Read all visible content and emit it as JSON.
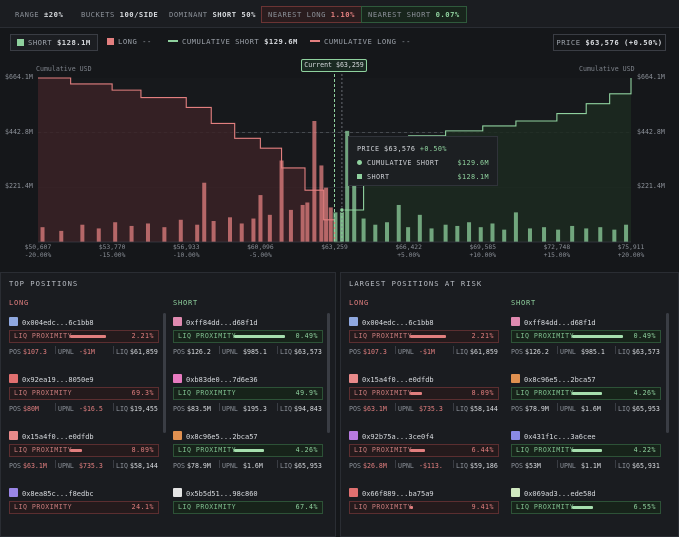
{
  "stats": {
    "range_label": "RANGE",
    "range_value": "±20%",
    "buckets_label": "BUCKETS",
    "buckets_value": "100/SIDE",
    "dominant_label": "DOMINANT",
    "dominant_value": "SHORT 50%",
    "nearest_long_label": "NEAREST LONG",
    "nearest_long_value": "1.10%",
    "nearest_short_label": "NEAREST SHORT",
    "nearest_short_value": "0.07%"
  },
  "legend": {
    "short_label": "SHORT",
    "short_value": "$128.1M",
    "long_label": "LONG",
    "long_value": "--",
    "cum_short_label": "CUMULATIVE SHORT",
    "cum_short_value": "$129.6M",
    "cum_long_label": "CUMULATIVE LONG",
    "cum_long_value": "--",
    "price_label": "PRICE",
    "price_value": "$63,576 (+0.50%)"
  },
  "chart": {
    "current_badge": "Current $63,259",
    "left_axis_title": "Cumulative USD",
    "right_axis_title": "Cumulative USD",
    "yticks": [
      "$664.1M",
      "$442.8M",
      "$221.4M"
    ],
    "xticks": [
      {
        "price": "$50,607",
        "pct": "-20.00%"
      },
      {
        "price": "$53,770",
        "pct": "-15.00%"
      },
      {
        "price": "$56,933",
        "pct": "-10.00%"
      },
      {
        "price": "$60,096",
        "pct": "-5.00%"
      },
      {
        "price": "$63,259",
        "pct": ""
      },
      {
        "price": "$66,422",
        "pct": "+5.00%"
      },
      {
        "price": "$69,585",
        "pct": "+10.00%"
      },
      {
        "price": "$72,748",
        "pct": "+15.00%"
      },
      {
        "price": "$75,911",
        "pct": "+20.00%"
      }
    ],
    "tooltip": {
      "price_label": "PRICE",
      "price_value": "$63,576",
      "price_change": "+0.50%",
      "cum_short_label": "CUMULATIVE SHORT",
      "cum_short_value": "$129.6M",
      "short_label": "SHORT",
      "short_value": "$128.1M"
    }
  },
  "chart_data": {
    "type": "bar",
    "xlabel": "",
    "ylabel": "Cumulative USD",
    "xlim": [
      50607,
      75911
    ],
    "ylim": [
      0,
      664.1
    ],
    "current_price": 63259,
    "hover_price": 63576,
    "series": [
      {
        "name": "LONG",
        "kind": "bar",
        "color": "#e27f7f",
        "x": [
          50800,
          51600,
          52500,
          53200,
          53900,
          54600,
          55300,
          56000,
          56700,
          57400,
          57700,
          58100,
          58800,
          59300,
          59800,
          60100,
          60500,
          61000,
          61400,
          61900,
          62100,
          62400,
          62700,
          62900,
          63100
        ],
        "y": [
          60,
          45,
          70,
          55,
          80,
          65,
          75,
          60,
          90,
          70,
          240,
          85,
          100,
          75,
          95,
          190,
          110,
          330,
          130,
          150,
          160,
          490,
          310,
          220,
          140
        ]
      },
      {
        "name": "SHORT",
        "kind": "bar",
        "color": "#8fd19e",
        "x": [
          63300,
          63576,
          63800,
          64100,
          64500,
          65000,
          65500,
          66000,
          66400,
          66900,
          67400,
          68000,
          68500,
          69000,
          69500,
          70000,
          70500,
          71000,
          71600,
          72200,
          72800,
          73400,
          74000,
          74600,
          75200,
          75700
        ],
        "y": [
          120,
          128.1,
          450,
          290,
          95,
          70,
          80,
          150,
          60,
          110,
          55,
          70,
          65,
          80,
          60,
          75,
          50,
          120,
          55,
          60,
          50,
          65,
          55,
          60,
          50,
          70
        ]
      },
      {
        "name": "CUMULATIVE LONG",
        "kind": "line",
        "color": "#e27f7f",
        "x": [
          50607,
          52000,
          53770,
          55000,
          56933,
          58000,
          59000,
          60096,
          61000,
          62000,
          62800,
          63259
        ],
        "y": [
          664.1,
          640,
          615,
          585,
          545,
          480,
          420,
          380,
          300,
          210,
          90,
          0
        ]
      },
      {
        "name": "CUMULATIVE SHORT",
        "kind": "line",
        "color": "#8fd19e",
        "x": [
          63259,
          63576,
          64500,
          66422,
          68000,
          69585,
          71000,
          72748,
          74000,
          75000,
          75911
        ],
        "y": [
          0,
          129.6,
          400,
          430,
          450,
          470,
          490,
          520,
          560,
          600,
          664.1
        ]
      }
    ]
  },
  "top_positions": {
    "title": "TOP POSITIONS",
    "long_head": "LONG",
    "short_head": "SHORT",
    "long": [
      {
        "name": "0x004edc...6c1bb8",
        "icon_color": "#8fa8e0",
        "liq_label": "LIQ PROXIMITY",
        "liq_pct": "2.21%",
        "liq_fill": 0.6,
        "pos_label": "POS",
        "pos_value": "$107.3",
        "upnl_label": "UPNL",
        "upnl_value": "-$1M",
        "liq_label2": "LIQ",
        "liq_value": "$61,859"
      },
      {
        "name": "0x92ea19...8050e9",
        "icon_color": "#e07070",
        "liq_label": "LIQ PROXIMITY",
        "liq_pct": "69.3%",
        "liq_fill": 0.0,
        "pos_label": "POS",
        "pos_value": "$80M",
        "upnl_label": "UPNL",
        "upnl_value": "-$16.5",
        "liq_label2": "LIQ",
        "liq_value": "$19,455"
      },
      {
        "name": "0x15a4f0...e0dfdb",
        "icon_color": "#e88a8a",
        "liq_label": "LIQ PROXIMITY",
        "liq_pct": "8.09%",
        "liq_fill": 0.2,
        "pos_label": "POS",
        "pos_value": "$63.1M",
        "upnl_label": "UPNL",
        "upnl_value": "$735.3",
        "liq_label2": "LIQ",
        "liq_value": "$58,144"
      },
      {
        "name": "0x8ea85c...f8edbc",
        "icon_color": "#9a86e6",
        "liq_label": "LIQ PROXIMITY",
        "liq_pct": "24.1%",
        "liq_fill": 0.0
      }
    ],
    "short": [
      {
        "name": "0xff84dd...d68f1d",
        "icon_color": "#e08ab0",
        "liq_label": "LIQ PROXIMITY",
        "liq_pct": "0.49%",
        "liq_fill": 0.85,
        "pos_label": "POS",
        "pos_value": "$126.2",
        "upnl_label": "UPNL",
        "upnl_value": "$985.1",
        "liq_label2": "LIQ",
        "liq_value": "$63,573"
      },
      {
        "name": "0xb83de0...7d6e36",
        "icon_color": "#e87ac0",
        "liq_label": "LIQ PROXIMITY",
        "liq_pct": "49.9%",
        "liq_fill": 0.0,
        "pos_label": "POS",
        "pos_value": "$83.5M",
        "upnl_label": "UPNL",
        "upnl_value": "$195.3",
        "liq_label2": "LIQ",
        "liq_value": "$94,843"
      },
      {
        "name": "0x8c96e5...2bca57",
        "icon_color": "#e09050",
        "liq_label": "LIQ PROXIMITY",
        "liq_pct": "4.26%",
        "liq_fill": 0.5,
        "pos_label": "POS",
        "pos_value": "$78.9M",
        "upnl_label": "UPNL",
        "upnl_value": "$1.6M",
        "liq_label2": "LIQ",
        "liq_value": "$65,953"
      },
      {
        "name": "0x5b5d51...98c860",
        "icon_color": "#e4e4e4",
        "liq_label": "LIQ PROXIMITY",
        "liq_pct": "67.4%",
        "liq_fill": 0.0
      }
    ]
  },
  "risk_positions": {
    "title": "LARGEST POSITIONS AT RISK",
    "long_head": "LONG",
    "short_head": "SHORT",
    "long": [
      {
        "name": "0x004edc...6c1bb8",
        "icon_color": "#8fa8e0",
        "liq_label": "LIQ PROXIMITY",
        "liq_pct": "2.21%",
        "liq_fill": 0.6,
        "pos_label": "POS",
        "pos_value": "$107.3",
        "upnl_label": "UPNL",
        "upnl_value": "-$1M",
        "liq_label2": "LIQ",
        "liq_value": "$61,859"
      },
      {
        "name": "0x15a4f0...e0dfdb",
        "icon_color": "#e88a8a",
        "liq_label": "LIQ PROXIMITY",
        "liq_pct": "8.09%",
        "liq_fill": 0.2,
        "pos_label": "POS",
        "pos_value": "$63.1M",
        "upnl_label": "UPNL",
        "upnl_value": "$735.3",
        "liq_label2": "LIQ",
        "liq_value": "$58,144"
      },
      {
        "name": "0x92b75a...3ce0f4",
        "icon_color": "#b87ae0",
        "liq_label": "LIQ PROXIMITY",
        "liq_pct": "6.44%",
        "liq_fill": 0.25,
        "pos_label": "POS",
        "pos_value": "$26.8M",
        "upnl_label": "UPNL",
        "upnl_value": "-$113.",
        "liq_label2": "LIQ",
        "liq_value": "$59,186"
      },
      {
        "name": "0x66f889...ba75a9",
        "icon_color": "#e07070",
        "liq_label": "LIQ PROXIMITY",
        "liq_pct": "9.41%",
        "liq_fill": 0.05
      }
    ],
    "short": [
      {
        "name": "0xff84dd...d68f1d",
        "icon_color": "#e08ab0",
        "liq_label": "LIQ PROXIMITY",
        "liq_pct": "0.49%",
        "liq_fill": 0.85,
        "pos_label": "POS",
        "pos_value": "$126.2",
        "upnl_label": "UPNL",
        "upnl_value": "$985.1",
        "liq_label2": "LIQ",
        "liq_value": "$63,573"
      },
      {
        "name": "0x8c96e5...2bca57",
        "icon_color": "#e09050",
        "liq_label": "LIQ PROXIMITY",
        "liq_pct": "4.26%",
        "liq_fill": 0.5,
        "pos_label": "POS",
        "pos_value": "$78.9M",
        "upnl_label": "UPNL",
        "upnl_value": "$1.6M",
        "liq_label2": "LIQ",
        "liq_value": "$65,953"
      },
      {
        "name": "0x431f1c...3a6cee",
        "icon_color": "#8a8ae6",
        "liq_label": "LIQ PROXIMITY",
        "liq_pct": "4.22%",
        "liq_fill": 0.5,
        "pos_label": "POS",
        "pos_value": "$53M",
        "upnl_label": "UPNL",
        "upnl_value": "$1.1M",
        "liq_label2": "LIQ",
        "liq_value": "$65,931"
      },
      {
        "name": "0x069ad3...ede58d",
        "icon_color": "#d0e8c0",
        "liq_label": "LIQ PROXIMITY",
        "liq_pct": "6.55%",
        "liq_fill": 0.35
      }
    ]
  }
}
